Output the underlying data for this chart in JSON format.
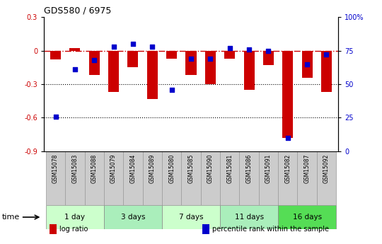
{
  "title": "GDS580 / 6975",
  "samples": [
    "GSM15078",
    "GSM15083",
    "GSM15088",
    "GSM15079",
    "GSM15084",
    "GSM15089",
    "GSM15080",
    "GSM15085",
    "GSM15090",
    "GSM15081",
    "GSM15086",
    "GSM15091",
    "GSM15082",
    "GSM15087",
    "GSM15092"
  ],
  "log_ratio": [
    -0.08,
    0.02,
    -0.22,
    -0.37,
    -0.15,
    -0.43,
    -0.07,
    -0.22,
    -0.3,
    -0.07,
    -0.35,
    -0.13,
    -0.78,
    -0.24,
    -0.37
  ],
  "percentile_rank": [
    26,
    61,
    68,
    78,
    80,
    78,
    46,
    69,
    69,
    77,
    76,
    75,
    10,
    65,
    72
  ],
  "groups": [
    {
      "label": "1 day",
      "count": 3,
      "color": "#ccffcc"
    },
    {
      "label": "3 days",
      "count": 3,
      "color": "#aaeebb"
    },
    {
      "label": "7 days",
      "count": 3,
      "color": "#ccffcc"
    },
    {
      "label": "11 days",
      "count": 3,
      "color": "#aaeebb"
    },
    {
      "label": "16 days",
      "count": 3,
      "color": "#55dd55"
    }
  ],
  "bar_color": "#cc0000",
  "dot_color": "#0000cc",
  "dash_color": "#cc0000",
  "left_ylim": [
    -0.9,
    0.3
  ],
  "right_ylim": [
    0,
    100
  ],
  "left_yticks": [
    -0.9,
    -0.6,
    -0.3,
    0.0,
    0.3
  ],
  "right_yticks": [
    0,
    25,
    50,
    75,
    100
  ],
  "right_yticklabels": [
    "0",
    "25",
    "50",
    "75",
    "100%"
  ],
  "hline_y": 0.0,
  "dotted_lines": [
    -0.3,
    -0.6
  ],
  "bar_width": 0.55,
  "legend_items": [
    {
      "label": "log ratio",
      "color": "#cc0000"
    },
    {
      "label": "percentile rank within the sample",
      "color": "#0000cc"
    }
  ],
  "time_label": "time",
  "bg_color": "#ffffff"
}
